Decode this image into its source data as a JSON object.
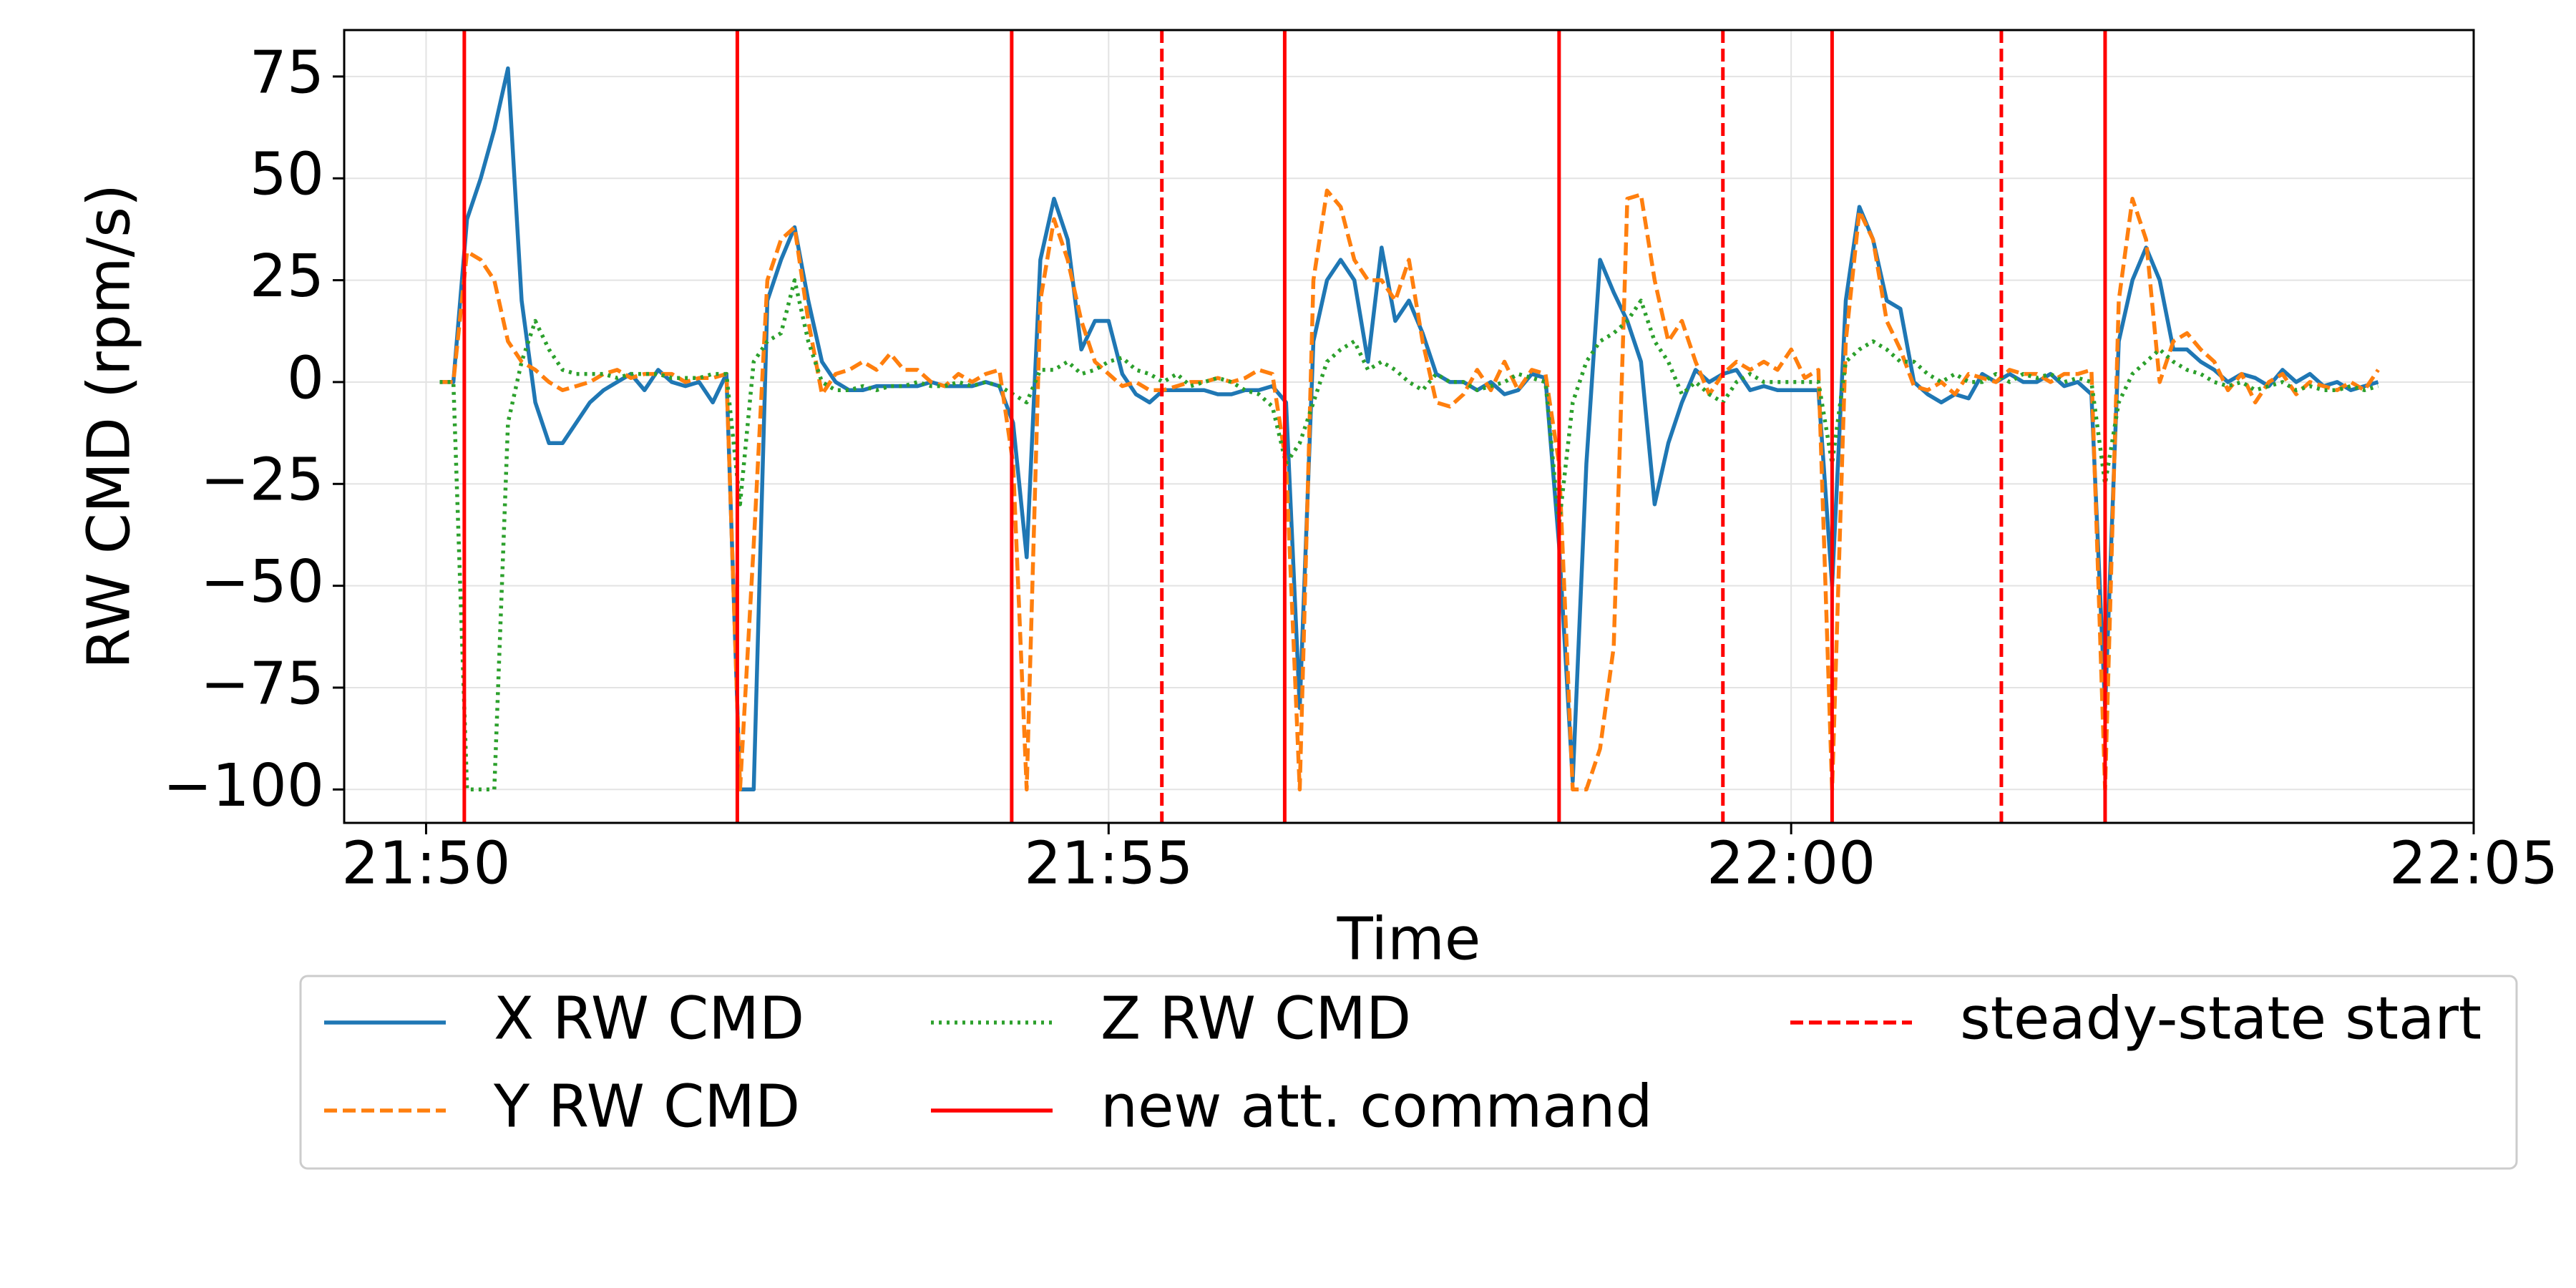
{
  "chart_data": {
    "type": "line",
    "xlabel": "Time",
    "ylabel": "RW CMD (rpm/s)",
    "xlim": [
      1309.4,
      1325.0
    ],
    "ylim": [
      -108.2,
      86.4
    ],
    "xticks": [
      {
        "value": 1310,
        "label": "21:50"
      },
      {
        "value": 1315,
        "label": "21:55"
      },
      {
        "value": 1320,
        "label": "22:00"
      },
      {
        "value": 1325,
        "label": "22:05"
      }
    ],
    "yticks": [
      75,
      50,
      25,
      0,
      {
        "value": -25,
        "label": "−25"
      },
      {
        "value": -50,
        "label": "−50"
      },
      {
        "value": -75,
        "label": "−75"
      },
      {
        "value": -100,
        "label": "−100"
      }
    ],
    "grid": true,
    "legend": "bottom",
    "x": [
      1310.1,
      1310.2,
      1310.3,
      1310.4,
      1310.5,
      1310.6,
      1310.7,
      1310.8,
      1310.9,
      1311.0,
      1311.1,
      1311.2,
      1311.3,
      1311.4,
      1311.5,
      1311.6,
      1311.7,
      1311.8,
      1311.9,
      1312.0,
      1312.1,
      1312.2,
      1312.3,
      1312.4,
      1312.5,
      1312.6,
      1312.7,
      1312.8,
      1312.9,
      1313.0,
      1313.1,
      1313.2,
      1313.3,
      1313.4,
      1313.5,
      1313.6,
      1313.7,
      1313.8,
      1313.9,
      1314.0,
      1314.1,
      1314.2,
      1314.3,
      1314.4,
      1314.5,
      1314.6,
      1314.7,
      1314.8,
      1314.9,
      1315.0,
      1315.1,
      1315.2,
      1315.3,
      1315.4,
      1315.5,
      1315.6,
      1315.7,
      1315.8,
      1315.9,
      1316.0,
      1316.1,
      1316.2,
      1316.3,
      1316.4,
      1316.5,
      1316.6,
      1316.7,
      1316.8,
      1316.9,
      1317.0,
      1317.1,
      1317.2,
      1317.3,
      1317.4,
      1317.5,
      1317.6,
      1317.7,
      1317.8,
      1317.9,
      1318.0,
      1318.1,
      1318.2,
      1318.3,
      1318.4,
      1318.5,
      1318.6,
      1318.7,
      1318.8,
      1318.9,
      1319.0,
      1319.1,
      1319.2,
      1319.3,
      1319.4,
      1319.5,
      1319.6,
      1319.7,
      1319.8,
      1319.9,
      1320.0,
      1320.1,
      1320.2,
      1320.3,
      1320.4,
      1320.5,
      1320.6,
      1320.7,
      1320.8,
      1320.9,
      1321.0,
      1321.1,
      1321.2,
      1321.3,
      1321.4,
      1321.5,
      1321.6,
      1321.7,
      1321.8,
      1321.9,
      1322.0,
      1322.1,
      1322.2,
      1322.3,
      1322.4,
      1322.5,
      1322.6,
      1322.7,
      1322.8,
      1322.9,
      1323.0,
      1323.1,
      1323.2,
      1323.3,
      1323.4,
      1323.5,
      1323.6,
      1323.7,
      1323.8,
      1323.9,
      1324.0,
      1324.1,
      1324.2,
      1324.3
    ],
    "series": [
      {
        "name": "X RW CMD",
        "color": "#1f77b4",
        "style": "solid",
        "values": [
          0,
          0,
          40,
          50,
          62,
          77,
          20,
          -5,
          -15,
          -15,
          -10,
          -5,
          -2,
          0,
          2,
          -2,
          3,
          0,
          -1,
          0,
          -5,
          2,
          -100,
          -100,
          20,
          30,
          38,
          20,
          5,
          0,
          -2,
          -2,
          -1,
          -1,
          -1,
          -1,
          0,
          -1,
          -1,
          -1,
          0,
          -1,
          -10,
          -43,
          30,
          45,
          35,
          8,
          15,
          15,
          2,
          -3,
          -5,
          -2,
          -2,
          -2,
          -2,
          -3,
          -3,
          -2,
          -2,
          -1,
          -5,
          -80,
          10,
          25,
          30,
          25,
          5,
          33,
          15,
          20,
          12,
          2,
          0,
          0,
          -2,
          0,
          -3,
          -2,
          2,
          1,
          -40,
          -98,
          -20,
          30,
          22,
          15,
          5,
          -30,
          -15,
          -5,
          3,
          0,
          2,
          3,
          -2,
          -1,
          -2,
          -2,
          -2,
          -2,
          -50,
          20,
          43,
          35,
          20,
          18,
          0,
          -3,
          -5,
          -3,
          -4,
          2,
          0,
          2,
          0,
          0,
          2,
          -1,
          0,
          -3,
          -80,
          10,
          25,
          33,
          25,
          8,
          8,
          5,
          3,
          0,
          2,
          1,
          -1,
          3,
          0,
          2,
          -1,
          0,
          -2,
          -1,
          0
        ]
      },
      {
        "name": "Y RW CMD",
        "color": "#ff7f0e",
        "style": "dashed",
        "values": [
          0,
          0,
          32,
          30,
          25,
          10,
          5,
          3,
          0,
          -2,
          -1,
          0,
          2,
          3,
          1,
          2,
          2,
          2,
          0,
          1,
          1,
          2,
          -100,
          -40,
          25,
          35,
          38,
          15,
          -3,
          2,
          3,
          5,
          3,
          7,
          3,
          3,
          0,
          -1,
          2,
          0,
          2,
          3,
          -20,
          -100,
          20,
          40,
          30,
          15,
          5,
          2,
          -1,
          0,
          -2,
          -2,
          -1,
          0,
          0,
          1,
          0,
          1,
          3,
          2,
          -20,
          -100,
          25,
          47,
          43,
          30,
          25,
          25,
          20,
          30,
          10,
          -5,
          -6,
          -3,
          3,
          -2,
          5,
          -2,
          3,
          2,
          -20,
          -100,
          -100,
          -90,
          -65,
          45,
          46,
          25,
          10,
          15,
          5,
          -3,
          2,
          5,
          3,
          5,
          3,
          8,
          1,
          3,
          -100,
          10,
          42,
          35,
          15,
          8,
          -1,
          -2,
          0,
          -3,
          2,
          1,
          0,
          3,
          2,
          2,
          0,
          2,
          2,
          3,
          -100,
          20,
          45,
          35,
          0,
          10,
          12,
          8,
          5,
          -2,
          2,
          -5,
          0,
          2,
          -3,
          0,
          -1,
          -2,
          0,
          -2,
          3
        ]
      },
      {
        "name": "Z RW CMD",
        "color": "#2ca02c",
        "style": "dotted",
        "values": [
          0,
          0,
          -100,
          -100,
          -100,
          -10,
          5,
          15,
          8,
          3,
          2,
          2,
          2,
          1,
          2,
          2,
          2,
          1,
          1,
          1,
          2,
          2,
          -30,
          5,
          10,
          12,
          25,
          10,
          0,
          -2,
          -2,
          -1,
          -2,
          -1,
          -1,
          0,
          -1,
          -1,
          0,
          -1,
          0,
          -1,
          -3,
          -5,
          3,
          3,
          5,
          2,
          3,
          5,
          6,
          3,
          2,
          0,
          2,
          -1,
          0,
          1,
          0,
          -2,
          -3,
          -6,
          -20,
          -15,
          -5,
          5,
          8,
          10,
          3,
          5,
          3,
          0,
          -2,
          2,
          0,
          0,
          -2,
          -1,
          0,
          2,
          1,
          0,
          -35,
          -5,
          5,
          10,
          12,
          15,
          20,
          10,
          5,
          -3,
          0,
          -3,
          -5,
          0,
          2,
          0,
          0,
          0,
          0,
          0,
          -20,
          5,
          8,
          10,
          8,
          5,
          5,
          2,
          0,
          2,
          0,
          0,
          2,
          0,
          2,
          1,
          2,
          0,
          1,
          0,
          -25,
          -5,
          2,
          5,
          8,
          5,
          3,
          2,
          0,
          -1,
          0,
          -2,
          -1,
          0,
          -2,
          -1,
          -2,
          -2,
          -1,
          -2,
          -1
        ]
      }
    ],
    "vlines": [
      {
        "name": "new att. command",
        "color": "#ff0000",
        "style": "solid",
        "x": [
          1310.28,
          1312.28,
          1314.29,
          1316.29,
          1318.3,
          1320.3,
          1322.3
        ]
      },
      {
        "name": "steady-state start",
        "color": "#ff0000",
        "style": "dashed",
        "x": [
          1315.39,
          1319.5,
          1321.54
        ]
      }
    ]
  }
}
